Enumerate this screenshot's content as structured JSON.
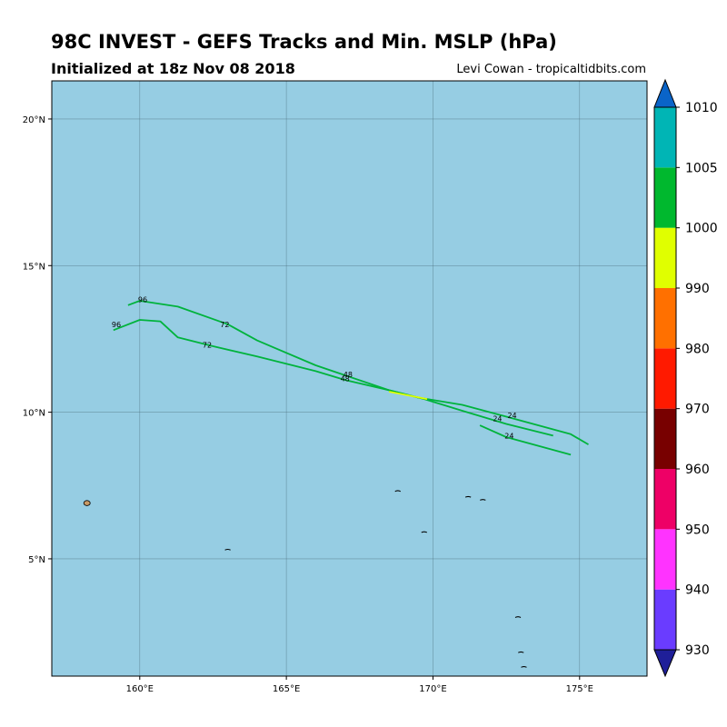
{
  "header": {
    "title": "98C INVEST - GEFS Tracks and Min. MSLP (hPa)",
    "subtitle": "Initialized at 18z Nov 08 2018",
    "credit": "Levi Cowan - tropicaltidbits.com"
  },
  "map": {
    "lon_range": [
      157.0,
      177.3
    ],
    "lat_range": [
      1.0,
      21.3
    ],
    "ocean_color": "#96cde3",
    "grid_color": "#4a6b7a",
    "lon_ticks": [
      {
        "value": 160,
        "label": "160°E"
      },
      {
        "value": 165,
        "label": "165°E"
      },
      {
        "value": 170,
        "label": "170°E"
      },
      {
        "value": 175,
        "label": "175°E"
      }
    ],
    "lat_ticks": [
      {
        "value": 5,
        "label": "5°N"
      },
      {
        "value": 10,
        "label": "10°N"
      },
      {
        "value": 15,
        "label": "15°N"
      },
      {
        "value": 20,
        "label": "20°N"
      }
    ],
    "islands": [
      {
        "name": "pohnpei",
        "lon": 158.2,
        "lat": 6.9,
        "color": "#c89a66"
      },
      {
        "name": "kosrae",
        "lon": 163.0,
        "lat": 5.3,
        "color": "#000000"
      },
      {
        "name": "ujae",
        "lon": 168.8,
        "lat": 7.3,
        "color": "#000000"
      },
      {
        "name": "kwajalein",
        "lon": 171.2,
        "lat": 7.1,
        "color": "#000000"
      },
      {
        "name": "wotje",
        "lon": 171.7,
        "lat": 7.0,
        "color": "#000000"
      },
      {
        "name": "jaluit",
        "lon": 169.7,
        "lat": 5.9,
        "color": "#000000"
      },
      {
        "name": "tarawa-n",
        "lon": 172.9,
        "lat": 3.0,
        "color": "#000000"
      },
      {
        "name": "tarawa-s",
        "lon": 173.0,
        "lat": 1.8,
        "color": "#000000"
      },
      {
        "name": "tarawa-s2",
        "lon": 173.1,
        "lat": 1.3,
        "color": "#000000"
      }
    ]
  },
  "chart_data": {
    "type": "line",
    "tracks": [
      {
        "color": "#00b33c",
        "points": [
          [
            175.3,
            8.9
          ],
          [
            174.7,
            9.25
          ],
          [
            172.3,
            9.9
          ],
          [
            171.0,
            10.25
          ],
          [
            169.5,
            10.5
          ],
          [
            168.5,
            10.75
          ],
          [
            166.0,
            11.6
          ],
          [
            164.0,
            12.45
          ],
          [
            163.0,
            13.0
          ],
          [
            161.3,
            13.6
          ],
          [
            160.0,
            13.8
          ],
          [
            159.6,
            13.65
          ]
        ],
        "labels": [
          {
            "text": "24",
            "lon": 172.7,
            "lat": 9.8
          },
          {
            "text": "48",
            "lon": 167.1,
            "lat": 11.2
          },
          {
            "text": "72",
            "lon": 162.9,
            "lat": 12.9
          },
          {
            "text": "96",
            "lon": 160.1,
            "lat": 13.75
          }
        ]
      },
      {
        "color": "#00b33c",
        "points": [
          [
            174.1,
            9.2
          ],
          [
            172.5,
            9.6
          ],
          [
            171.0,
            10.05
          ],
          [
            169.7,
            10.45
          ],
          [
            168.5,
            10.75
          ],
          [
            167.0,
            11.1
          ],
          [
            166.0,
            11.4
          ],
          [
            164.0,
            11.9
          ],
          [
            162.5,
            12.25
          ],
          [
            161.3,
            12.55
          ],
          [
            160.7,
            13.1
          ],
          [
            160.0,
            13.15
          ],
          [
            159.1,
            12.8
          ]
        ],
        "labels": [
          {
            "text": "24",
            "lon": 172.2,
            "lat": 9.7
          },
          {
            "text": "48",
            "lon": 167.0,
            "lat": 11.05
          },
          {
            "text": "72",
            "lon": 162.3,
            "lat": 12.2
          },
          {
            "text": "96",
            "lon": 159.2,
            "lat": 12.9
          }
        ]
      },
      {
        "color": "#00b33c",
        "points": [
          [
            174.7,
            8.55
          ],
          [
            172.5,
            9.15
          ],
          [
            171.6,
            9.55
          ]
        ],
        "labels": [
          {
            "text": "24",
            "lon": 172.6,
            "lat": 9.1
          }
        ]
      },
      {
        "color": "#e0ff00",
        "points": [
          [
            168.5,
            10.7
          ],
          [
            169.8,
            10.45
          ]
        ],
        "labels": []
      }
    ],
    "colorbar": {
      "levels": [
        930,
        940,
        950,
        960,
        970,
        980,
        990,
        1000,
        1005,
        1010
      ],
      "label_values": [
        "930",
        "940",
        "950",
        "960",
        "970",
        "980",
        "990",
        "1000",
        "1005",
        "1010"
      ],
      "colors": [
        "#6a3cff",
        "#ff33ff",
        "#ee0066",
        "#780000",
        "#ff1a00",
        "#ff7000",
        "#e0ff00",
        "#00b82e",
        "#00b5b5"
      ],
      "under_color": "#1f1f99",
      "over_color": "#0a64c8"
    }
  }
}
